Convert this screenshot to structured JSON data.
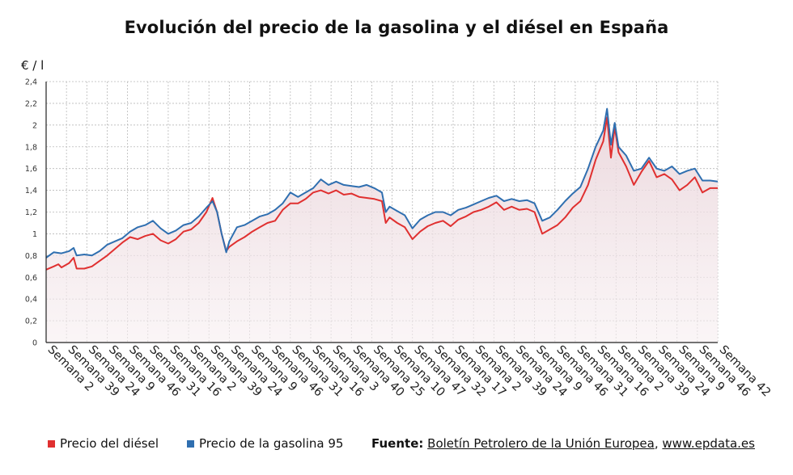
{
  "chart_data": {
    "type": "line",
    "title": "Evolución del precio de la gasolina y el diésel en España",
    "ylabel": "€ / l",
    "ylim": [
      0,
      2.4
    ],
    "yticks": [
      "0",
      "0,2",
      "0,4",
      "0,6",
      "0,8",
      "1",
      "1,2",
      "1,4",
      "1,6",
      "1,8",
      "2",
      "2,2",
      "2,4"
    ],
    "yvalues": [
      0,
      0.2,
      0.4,
      0.6,
      0.8,
      1.0,
      1.2,
      1.4,
      1.6,
      1.8,
      2.0,
      2.2,
      2.4
    ],
    "xlabels": [
      "Semana 2",
      "Semana 39",
      "Semana 24",
      "Semana 9",
      "Semana 46",
      "Semana 31",
      "Semana 16",
      "Semana 2",
      "Semana 39",
      "Semana 24",
      "Semana 9",
      "Semana 46",
      "Semana 31",
      "Semana 16",
      "Semana 3",
      "Semana 40",
      "Semana 25",
      "Semana 10",
      "Semana 47",
      "Semana 32",
      "Semana 17",
      "Semana 2",
      "Semana 39",
      "Semana 24",
      "Semana 9",
      "Semana 46",
      "Semana 31",
      "Semana 16",
      "Semana 2",
      "Semana 39",
      "Semana 24",
      "Semana 9",
      "Semana 46",
      "Semana 42"
    ],
    "grid": true,
    "legend_position": "bottom-left",
    "series": [
      {
        "name": "Precio del diésel",
        "color": "#e03030",
        "points": [
          [
            0,
            0.67
          ],
          [
            1,
            0.7
          ],
          [
            1.6,
            0.72
          ],
          [
            2,
            0.69
          ],
          [
            3,
            0.73
          ],
          [
            3.6,
            0.78
          ],
          [
            4,
            0.68
          ],
          [
            5,
            0.68
          ],
          [
            6,
            0.7
          ],
          [
            7,
            0.75
          ],
          [
            8,
            0.8
          ],
          [
            9,
            0.86
          ],
          [
            10,
            0.92
          ],
          [
            11,
            0.97
          ],
          [
            12,
            0.95
          ],
          [
            13,
            0.98
          ],
          [
            14,
            1.0
          ],
          [
            15,
            0.94
          ],
          [
            16,
            0.91
          ],
          [
            17,
            0.95
          ],
          [
            18,
            1.02
          ],
          [
            19,
            1.04
          ],
          [
            20,
            1.1
          ],
          [
            21,
            1.2
          ],
          [
            21.8,
            1.33
          ],
          [
            22.4,
            1.2
          ],
          [
            23,
            1.0
          ],
          [
            23.6,
            0.84
          ],
          [
            24,
            0.88
          ],
          [
            25,
            0.93
          ],
          [
            26,
            0.97
          ],
          [
            27,
            1.02
          ],
          [
            28,
            1.06
          ],
          [
            29,
            1.1
          ],
          [
            30,
            1.12
          ],
          [
            31,
            1.22
          ],
          [
            32,
            1.28
          ],
          [
            33,
            1.28
          ],
          [
            34,
            1.32
          ],
          [
            35,
            1.38
          ],
          [
            36,
            1.4
          ],
          [
            37,
            1.37
          ],
          [
            38,
            1.4
          ],
          [
            39,
            1.36
          ],
          [
            40,
            1.37
          ],
          [
            41,
            1.34
          ],
          [
            42,
            1.33
          ],
          [
            43,
            1.32
          ],
          [
            44,
            1.3
          ],
          [
            44.5,
            1.1
          ],
          [
            45,
            1.15
          ],
          [
            46,
            1.1
          ],
          [
            47,
            1.06
          ],
          [
            48,
            0.95
          ],
          [
            49,
            1.02
          ],
          [
            50,
            1.07
          ],
          [
            51,
            1.1
          ],
          [
            52,
            1.12
          ],
          [
            53,
            1.07
          ],
          [
            54,
            1.13
          ],
          [
            55,
            1.16
          ],
          [
            56,
            1.2
          ],
          [
            57,
            1.22
          ],
          [
            58,
            1.25
          ],
          [
            59,
            1.29
          ],
          [
            60,
            1.22
          ],
          [
            61,
            1.25
          ],
          [
            62,
            1.22
          ],
          [
            63,
            1.23
          ],
          [
            64,
            1.2
          ],
          [
            65,
            1.0
          ],
          [
            66,
            1.04
          ],
          [
            67,
            1.08
          ],
          [
            68,
            1.15
          ],
          [
            69,
            1.24
          ],
          [
            70,
            1.3
          ],
          [
            71,
            1.45
          ],
          [
            72,
            1.68
          ],
          [
            73,
            1.85
          ],
          [
            73.5,
            2.07
          ],
          [
            74,
            1.7
          ],
          [
            74.5,
            1.98
          ],
          [
            75,
            1.75
          ],
          [
            76,
            1.62
          ],
          [
            77,
            1.45
          ],
          [
            78,
            1.57
          ],
          [
            79,
            1.67
          ],
          [
            80,
            1.52
          ],
          [
            81,
            1.55
          ],
          [
            82,
            1.5
          ],
          [
            83,
            1.4
          ],
          [
            84,
            1.45
          ],
          [
            85,
            1.52
          ],
          [
            86,
            1.38
          ],
          [
            87,
            1.42
          ],
          [
            88,
            1.42
          ]
        ]
      },
      {
        "name": "Precio de la gasolina 95",
        "color": "#2f6fb0",
        "points": [
          [
            0,
            0.78
          ],
          [
            1,
            0.83
          ],
          [
            2,
            0.82
          ],
          [
            3,
            0.84
          ],
          [
            3.6,
            0.87
          ],
          [
            4,
            0.8
          ],
          [
            5,
            0.81
          ],
          [
            6,
            0.8
          ],
          [
            7,
            0.84
          ],
          [
            8,
            0.9
          ],
          [
            9,
            0.93
          ],
          [
            10,
            0.96
          ],
          [
            11,
            1.02
          ],
          [
            12,
            1.06
          ],
          [
            13,
            1.08
          ],
          [
            14,
            1.12
          ],
          [
            15,
            1.05
          ],
          [
            16,
            1.0
          ],
          [
            17,
            1.03
          ],
          [
            18,
            1.08
          ],
          [
            19,
            1.1
          ],
          [
            20,
            1.16
          ],
          [
            21,
            1.24
          ],
          [
            21.8,
            1.3
          ],
          [
            22.4,
            1.2
          ],
          [
            23,
            1.0
          ],
          [
            23.6,
            0.83
          ],
          [
            24,
            0.93
          ],
          [
            25,
            1.06
          ],
          [
            26,
            1.08
          ],
          [
            27,
            1.12
          ],
          [
            28,
            1.16
          ],
          [
            29,
            1.18
          ],
          [
            30,
            1.22
          ],
          [
            31,
            1.28
          ],
          [
            32,
            1.38
          ],
          [
            33,
            1.34
          ],
          [
            34,
            1.38
          ],
          [
            35,
            1.42
          ],
          [
            36,
            1.5
          ],
          [
            37,
            1.45
          ],
          [
            38,
            1.48
          ],
          [
            39,
            1.45
          ],
          [
            40,
            1.44
          ],
          [
            41,
            1.43
          ],
          [
            42,
            1.45
          ],
          [
            43,
            1.42
          ],
          [
            44,
            1.38
          ],
          [
            44.5,
            1.2
          ],
          [
            45,
            1.25
          ],
          [
            46,
            1.21
          ],
          [
            47,
            1.17
          ],
          [
            48,
            1.05
          ],
          [
            49,
            1.13
          ],
          [
            50,
            1.17
          ],
          [
            51,
            1.2
          ],
          [
            52,
            1.2
          ],
          [
            53,
            1.17
          ],
          [
            54,
            1.22
          ],
          [
            55,
            1.24
          ],
          [
            56,
            1.27
          ],
          [
            57,
            1.3
          ],
          [
            58,
            1.33
          ],
          [
            59,
            1.35
          ],
          [
            60,
            1.3
          ],
          [
            61,
            1.32
          ],
          [
            62,
            1.3
          ],
          [
            63,
            1.31
          ],
          [
            64,
            1.28
          ],
          [
            65,
            1.12
          ],
          [
            66,
            1.15
          ],
          [
            67,
            1.22
          ],
          [
            68,
            1.3
          ],
          [
            69,
            1.37
          ],
          [
            70,
            1.43
          ],
          [
            71,
            1.6
          ],
          [
            72,
            1.8
          ],
          [
            73,
            1.95
          ],
          [
            73.5,
            2.15
          ],
          [
            74,
            1.82
          ],
          [
            74.5,
            2.02
          ],
          [
            75,
            1.8
          ],
          [
            76,
            1.72
          ],
          [
            77,
            1.58
          ],
          [
            78,
            1.6
          ],
          [
            79,
            1.7
          ],
          [
            80,
            1.6
          ],
          [
            81,
            1.58
          ],
          [
            82,
            1.62
          ],
          [
            83,
            1.55
          ],
          [
            84,
            1.58
          ],
          [
            85,
            1.6
          ],
          [
            86,
            1.49
          ],
          [
            87,
            1.49
          ],
          [
            88,
            1.48
          ]
        ]
      }
    ]
  },
  "legend": {
    "diesel": "Precio del diésel",
    "gasoline": "Precio de la gasolina 95"
  },
  "source": {
    "label": "Fuente:",
    "text": "Boletín Petrolero de la Unión Europea",
    "separator": ", ",
    "site": "www.epdata.es"
  }
}
